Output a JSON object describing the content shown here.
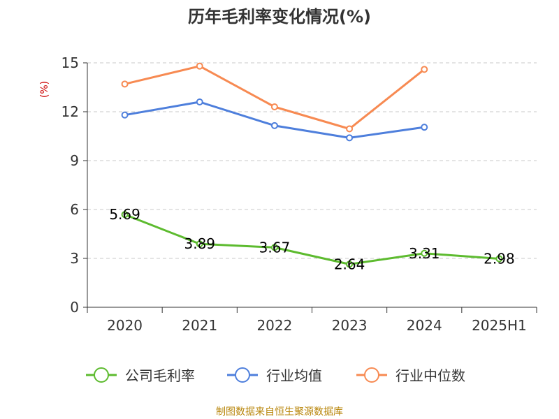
{
  "chart_data": {
    "type": "line",
    "title": "历年毛利率变化情况(%)",
    "ylabel": "(%)",
    "xlabel": "",
    "categories": [
      "2020",
      "2021",
      "2022",
      "2023",
      "2024",
      "2025H1"
    ],
    "yticks": [
      "0",
      "3",
      "6",
      "9",
      "12",
      "15"
    ],
    "ylim": [
      0,
      15
    ],
    "grid": true,
    "legend_position": "bottom",
    "series": [
      {
        "name": "公司毛利率",
        "color": "#5dbb2f",
        "values": [
          5.69,
          3.89,
          3.67,
          2.64,
          3.31,
          2.98
        ],
        "labels": [
          "5.69",
          "3.89",
          "3.67",
          "2.64",
          "3.31",
          "2.98"
        ],
        "show_labels": true
      },
      {
        "name": "行业均值",
        "color": "#4e7fdc",
        "values": [
          11.8,
          12.6,
          11.15,
          10.4,
          11.05,
          null
        ],
        "show_labels": false
      },
      {
        "name": "行业中位数",
        "color": "#f78a52",
        "values": [
          13.7,
          14.8,
          12.3,
          10.95,
          14.6,
          null
        ],
        "show_labels": false
      }
    ]
  },
  "source_text": "制图数据来自恒生聚源数据库"
}
